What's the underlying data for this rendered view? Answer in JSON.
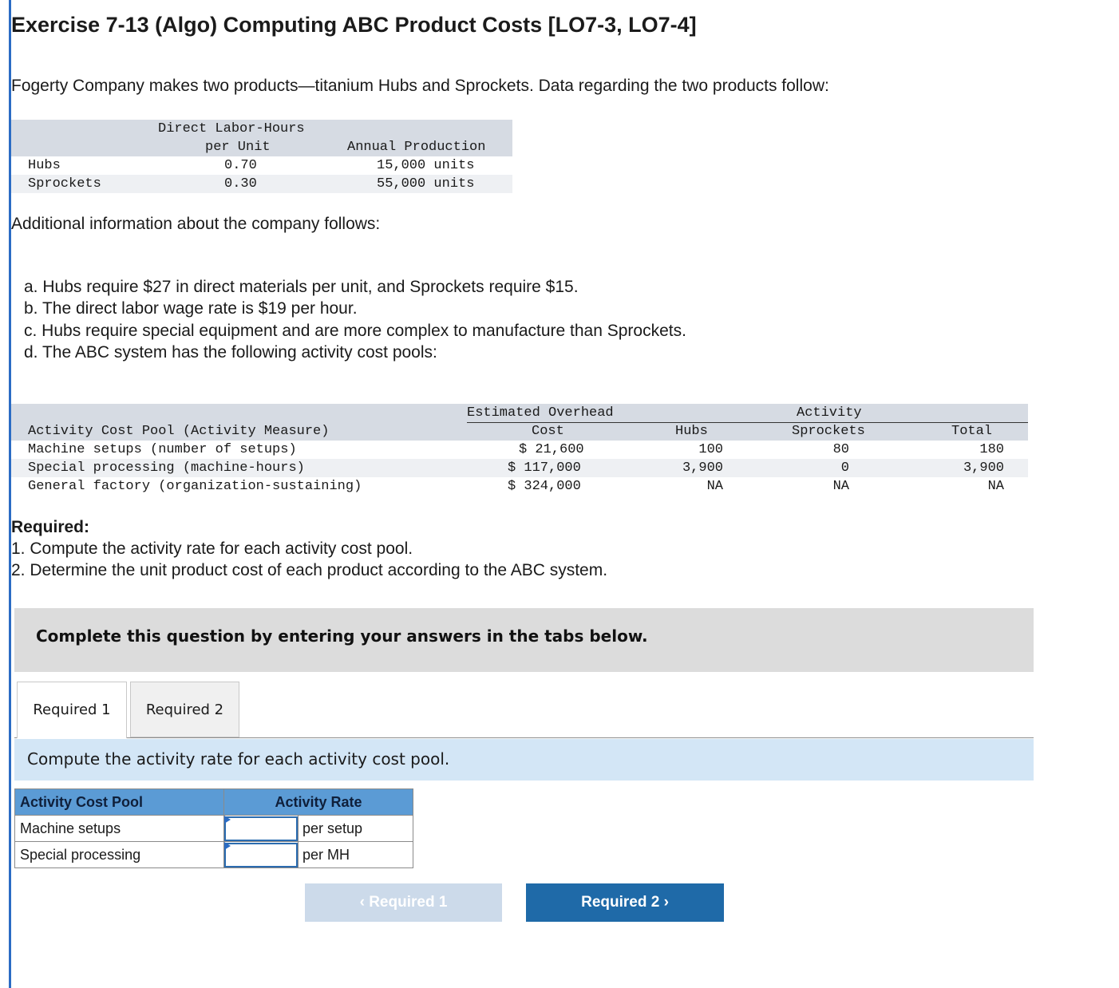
{
  "title": "Exercise 7-13 (Algo) Computing ABC Product Costs [LO7-3, LO7-4]",
  "intro": "Fogerty Company makes two products—titanium Hubs and Sprockets. Data regarding the two products follow:",
  "products_table": {
    "headers": {
      "dlh_line1": "Direct Labor-Hours",
      "dlh_line2": "per Unit",
      "production": "Annual Production"
    },
    "rows": [
      {
        "name": "Hubs",
        "dlh": "0.70",
        "production": "15,000 units"
      },
      {
        "name": "Sprockets",
        "dlh": "0.30",
        "production": "55,000 units"
      }
    ]
  },
  "additional": "Additional information about the company follows:",
  "list": [
    "a. Hubs require $27 in direct materials per unit, and Sprockets require $15.",
    "b. The direct labor wage rate is $19 per hour.",
    "c. Hubs require special equipment and are more complex to manufacture than Sprockets.",
    "d. The ABC system has the following activity cost pools:"
  ],
  "activity_table": {
    "headers": {
      "pool": "Activity Cost Pool (Activity Measure)",
      "overhead_line1": "Estimated Overhead",
      "overhead_line2": "Cost",
      "activity": "Activity",
      "hubs": "Hubs",
      "sprockets": "Sprockets",
      "total": "Total"
    },
    "rows": [
      {
        "pool": "Machine setups (number of setups)",
        "cost": "$ 21,600",
        "hubs": "100",
        "sprockets": "80",
        "total": "180"
      },
      {
        "pool": "Special processing (machine-hours)",
        "cost": "$ 117,000",
        "hubs": "3,900",
        "sprockets": "0",
        "total": "3,900"
      },
      {
        "pool": "General factory (organization-sustaining)",
        "cost": "$ 324,000",
        "hubs": "NA",
        "sprockets": "NA",
        "total": "NA"
      }
    ]
  },
  "required": {
    "title": "Required:",
    "items": [
      "1. Compute the activity rate for each activity cost pool.",
      "2. Determine the unit product cost of each product according to the ABC system."
    ]
  },
  "banner": "Complete this question by entering your answers in the tabs below.",
  "tabs": [
    "Required 1",
    "Required 2"
  ],
  "instruction": "Compute the activity rate for each activity cost pool.",
  "answer_table": {
    "headers": [
      "Activity Cost Pool",
      "Activity Rate"
    ],
    "rows": [
      {
        "pool": "Machine setups",
        "value": "",
        "unit": "per setup"
      },
      {
        "pool": "Special processing",
        "value": "",
        "unit": "per MH"
      }
    ]
  },
  "nav": {
    "prev": "Required 1",
    "next": "Required 2"
  },
  "colors": {
    "accent": "#1f6aa8",
    "header_fill": "#5b9bd5",
    "instruction_bg": "#d3e6f6"
  }
}
